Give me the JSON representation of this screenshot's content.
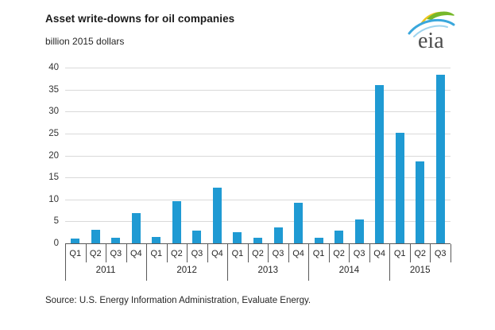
{
  "header": {
    "title": "Asset write-downs for oil companies",
    "subtitle": "billion 2015 dollars",
    "logo_text": "eia"
  },
  "footer": {
    "source": "Source:  U.S. Energy Information Administration, Evaluate Energy."
  },
  "colors": {
    "bar": "#1f9ad3",
    "gridline": "#d9d9d9",
    "axis": "#595959",
    "logo_green": "#76b82a",
    "logo_yellow": "#edc51f",
    "logo_blue": "#3aa7dc",
    "logo_blue_light": "#9ed4ee",
    "logo_text_color": "#4a4a4a"
  },
  "chart_data": {
    "type": "bar",
    "title": "Asset write-downs for oil companies",
    "ylabel": "billion 2015 dollars",
    "ylim": [
      0,
      40
    ],
    "ytick_step": 5,
    "grid": "horizontal",
    "legend": "none",
    "categories": [
      "2011 Q1",
      "2011 Q2",
      "2011 Q3",
      "2011 Q4",
      "2012 Q1",
      "2012 Q2",
      "2012 Q3",
      "2012 Q4",
      "2013 Q1",
      "2013 Q2",
      "2013 Q3",
      "2013 Q4",
      "2014 Q1",
      "2014 Q2",
      "2014 Q3",
      "2014 Q4",
      "2015 Q1",
      "2015 Q2",
      "2015 Q3"
    ],
    "values": [
      1.0,
      3.1,
      1.3,
      6.8,
      1.4,
      9.6,
      2.9,
      12.6,
      2.6,
      1.3,
      3.6,
      9.2,
      1.3,
      2.9,
      5.5,
      36.0,
      25.2,
      18.6,
      38.4
    ],
    "years": [
      {
        "label": "2011",
        "quarters": [
          "Q1",
          "Q2",
          "Q3",
          "Q4"
        ],
        "values": [
          1.0,
          3.1,
          1.3,
          6.8
        ]
      },
      {
        "label": "2012",
        "quarters": [
          "Q1",
          "Q2",
          "Q3",
          "Q4"
        ],
        "values": [
          1.4,
          9.6,
          2.9,
          12.6
        ]
      },
      {
        "label": "2013",
        "quarters": [
          "Q1",
          "Q2",
          "Q3",
          "Q4"
        ],
        "values": [
          2.6,
          1.3,
          3.6,
          9.2
        ]
      },
      {
        "label": "2014",
        "quarters": [
          "Q1",
          "Q2",
          "Q3",
          "Q4"
        ],
        "values": [
          1.3,
          2.9,
          5.5,
          36.0
        ]
      },
      {
        "label": "2015",
        "quarters": [
          "Q1",
          "Q2",
          "Q3"
        ],
        "values": [
          25.2,
          18.6,
          38.4
        ]
      }
    ]
  }
}
